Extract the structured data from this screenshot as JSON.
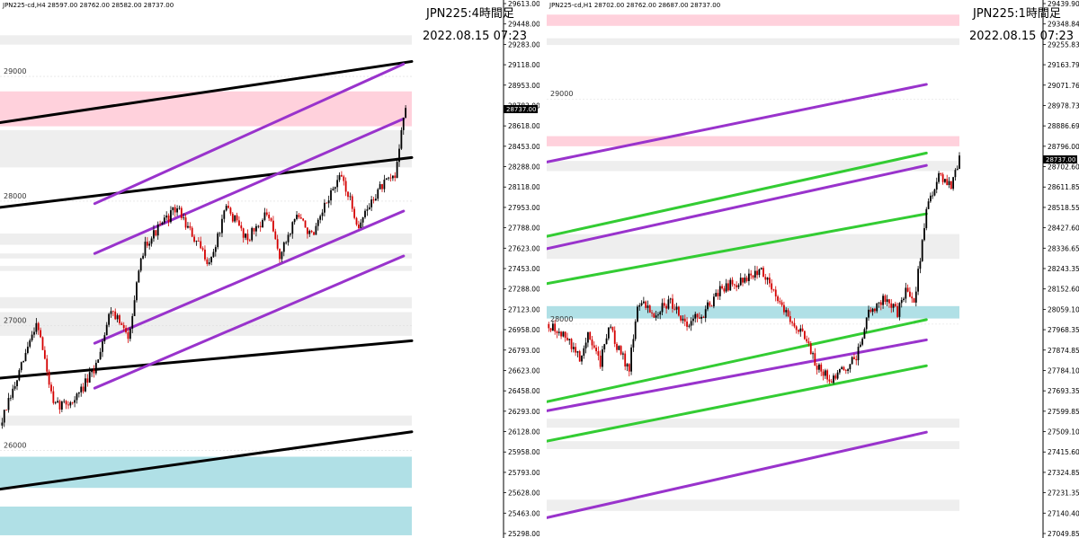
{
  "charts": [
    {
      "header": "JPN225-cd,H4  28597.00 28762.00 28582.00 28737.00",
      "symbol_timeframe": "JPN225:4時間足",
      "datetime": "2022.08.15 07:23",
      "price_axis": {
        "min": 25298.0,
        "max": 29613.0,
        "ticks": [
          "29613.00",
          "29448.00",
          "29283.00",
          "29118.00",
          "28953.00",
          "28783.00",
          "28618.00",
          "28453.00",
          "28288.00",
          "28118.00",
          "27953.00",
          "27788.00",
          "27623.00",
          "27453.00",
          "27288.00",
          "27123.00",
          "26958.00",
          "26793.00",
          "26623.00",
          "26458.00",
          "26293.00",
          "26128.00",
          "25958.00",
          "25793.00",
          "25628.00",
          "25463.00",
          "25298.00"
        ],
        "current_price": "28737.00"
      },
      "round_levels": [
        "29000",
        "28000",
        "27000",
        "26000"
      ],
      "zones": [
        {
          "color": "#eeeeee",
          "y1": 29330,
          "y2": 29255
        },
        {
          "color": "#ffd1dc",
          "y1": 28880,
          "y2": 28600
        },
        {
          "color": "#eeeeee",
          "y1": 28570,
          "y2": 28270
        },
        {
          "color": "#eeeeee",
          "y1": 27740,
          "y2": 27650
        },
        {
          "color": "#eeeeee",
          "y1": 27580,
          "y2": 27540
        },
        {
          "color": "#eeeeee",
          "y1": 27480,
          "y2": 27440
        },
        {
          "color": "#eeeeee",
          "y1": 27230,
          "y2": 27140
        },
        {
          "color": "#eeeeee",
          "y1": 27110,
          "y2": 26920
        },
        {
          "color": "#eeeeee",
          "y1": 26280,
          "y2": 26200
        },
        {
          "color": "#b0e0e6",
          "y1": 25950,
          "y2": 25700
        },
        {
          "color": "#b0e0e6",
          "y1": 25550,
          "y2": 25320
        }
      ],
      "trend_lines": [
        {
          "color": "#000000",
          "from": [
            0,
            28630
          ],
          "to": [
            1,
            29120
          ]
        },
        {
          "color": "#000000",
          "from": [
            0,
            27950
          ],
          "to": [
            1,
            28350
          ]
        },
        {
          "color": "#000000",
          "from": [
            0,
            26580
          ],
          "to": [
            1,
            26880
          ]
        },
        {
          "color": "#000000",
          "from": [
            0,
            25690
          ],
          "to": [
            1,
            26150
          ]
        },
        {
          "color": "#9933cc",
          "from": [
            0.23,
            27980
          ],
          "to": [
            0.98,
            29100
          ]
        },
        {
          "color": "#9933cc",
          "from": [
            0.23,
            27580
          ],
          "to": [
            0.98,
            28660
          ]
        },
        {
          "color": "#9933cc",
          "from": [
            0.23,
            26860
          ],
          "to": [
            0.98,
            27920
          ]
        },
        {
          "color": "#9933cc",
          "from": [
            0.23,
            26500
          ],
          "to": [
            0.98,
            27560
          ]
        }
      ],
      "candles": {
        "waypoints": [
          [
            0,
            26200
          ],
          [
            0.04,
            26550
          ],
          [
            0.09,
            27050
          ],
          [
            0.13,
            26350
          ],
          [
            0.18,
            26400
          ],
          [
            0.23,
            26650
          ],
          [
            0.27,
            27150
          ],
          [
            0.31,
            26900
          ],
          [
            0.35,
            27650
          ],
          [
            0.43,
            27950
          ],
          [
            0.47,
            27700
          ],
          [
            0.51,
            27500
          ],
          [
            0.55,
            27950
          ],
          [
            0.6,
            27700
          ],
          [
            0.65,
            27900
          ],
          [
            0.68,
            27550
          ],
          [
            0.72,
            27900
          ],
          [
            0.76,
            27700
          ],
          [
            0.8,
            28050
          ],
          [
            0.83,
            28200
          ],
          [
            0.87,
            27800
          ],
          [
            0.92,
            28100
          ],
          [
            0.96,
            28200
          ],
          [
            0.975,
            28600
          ],
          [
            0.985,
            28737
          ]
        ],
        "count": 190,
        "up_color": "#000000",
        "down_color": "#d40000",
        "seed": 7
      }
    },
    {
      "header": "JPN225-cd,H1  28702.00 28762.00 28687.00 28737.00",
      "symbol_timeframe": "JPN225:1時間足",
      "datetime": "2022.08.15 07:23",
      "price_axis": {
        "min": 27049.85,
        "max": 29439.9,
        "ticks": [
          "29439.90",
          "29348.84",
          "29255.83",
          "29163.79",
          "29071.76",
          "28978.73",
          "28886.69",
          "28796.00",
          "28702.60",
          "28611.85",
          "28518.55",
          "28427.60",
          "28336.65",
          "28243.35",
          "28152.60",
          "28059.10",
          "27968.35",
          "27874.85",
          "27784.10",
          "27693.35",
          "27599.85",
          "27509.10",
          "27415.60",
          "27324.85",
          "27231.35",
          "27140.40",
          "27049.85"
        ],
        "current_price": "28737.00"
      },
      "round_levels": [
        "29000",
        "28000"
      ],
      "zones": [
        {
          "color": "#ffd1dc",
          "y1": 29375,
          "y2": 29325
        },
        {
          "color": "#eeeeee",
          "y1": 29270,
          "y2": 29240
        },
        {
          "color": "#ffd1dc",
          "y1": 28835,
          "y2": 28790
        },
        {
          "color": "#eeeeee",
          "y1": 28725,
          "y2": 28680
        },
        {
          "color": "#eeeeee",
          "y1": 28400,
          "y2": 28290
        },
        {
          "color": "#b0e0e6",
          "y1": 28080,
          "y2": 28025
        },
        {
          "color": "#eeeeee",
          "y1": 27580,
          "y2": 27540
        },
        {
          "color": "#eeeeee",
          "y1": 27480,
          "y2": 27445
        },
        {
          "color": "#eeeeee",
          "y1": 27220,
          "y2": 27170
        }
      ],
      "trend_lines": [
        {
          "color": "#9933cc",
          "from": [
            0,
            28720
          ],
          "to": [
            0.92,
            29065
          ]
        },
        {
          "color": "#9933cc",
          "from": [
            0,
            28335
          ],
          "to": [
            0.92,
            28705
          ]
        },
        {
          "color": "#9933cc",
          "from": [
            0,
            27615
          ],
          "to": [
            0.92,
            27930
          ]
        },
        {
          "color": "#9933cc",
          "from": [
            0,
            27140
          ],
          "to": [
            0.92,
            27520
          ]
        },
        {
          "color": "#33cc33",
          "from": [
            0,
            28390
          ],
          "to": [
            0.92,
            28760
          ]
        },
        {
          "color": "#33cc33",
          "from": [
            0,
            28180
          ],
          "to": [
            0.92,
            28490
          ]
        },
        {
          "color": "#33cc33",
          "from": [
            0,
            27655
          ],
          "to": [
            0.92,
            28020
          ]
        },
        {
          "color": "#33cc33",
          "from": [
            0,
            27480
          ],
          "to": [
            0.92,
            27815
          ]
        }
      ],
      "candles": {
        "waypoints": [
          [
            0,
            28000
          ],
          [
            0.04,
            27950
          ],
          [
            0.08,
            27850
          ],
          [
            0.1,
            27950
          ],
          [
            0.13,
            27820
          ],
          [
            0.15,
            28000
          ],
          [
            0.17,
            27900
          ],
          [
            0.2,
            27800
          ],
          [
            0.22,
            28100
          ],
          [
            0.26,
            28050
          ],
          [
            0.3,
            28100
          ],
          [
            0.34,
            28000
          ],
          [
            0.38,
            28050
          ],
          [
            0.42,
            28150
          ],
          [
            0.45,
            28180
          ],
          [
            0.48,
            28200
          ],
          [
            0.52,
            28240
          ],
          [
            0.55,
            28150
          ],
          [
            0.58,
            28050
          ],
          [
            0.62,
            27950
          ],
          [
            0.66,
            27800
          ],
          [
            0.69,
            27750
          ],
          [
            0.72,
            27800
          ],
          [
            0.75,
            27850
          ],
          [
            0.78,
            28050
          ],
          [
            0.82,
            28120
          ],
          [
            0.85,
            28050
          ],
          [
            0.87,
            28150
          ],
          [
            0.89,
            28100
          ],
          [
            0.92,
            28500
          ],
          [
            0.95,
            28650
          ],
          [
            0.98,
            28620
          ],
          [
            1.0,
            28737
          ]
        ],
        "count": 200,
        "up_color": "#000000",
        "down_color": "#d40000",
        "seed": 13
      }
    }
  ]
}
